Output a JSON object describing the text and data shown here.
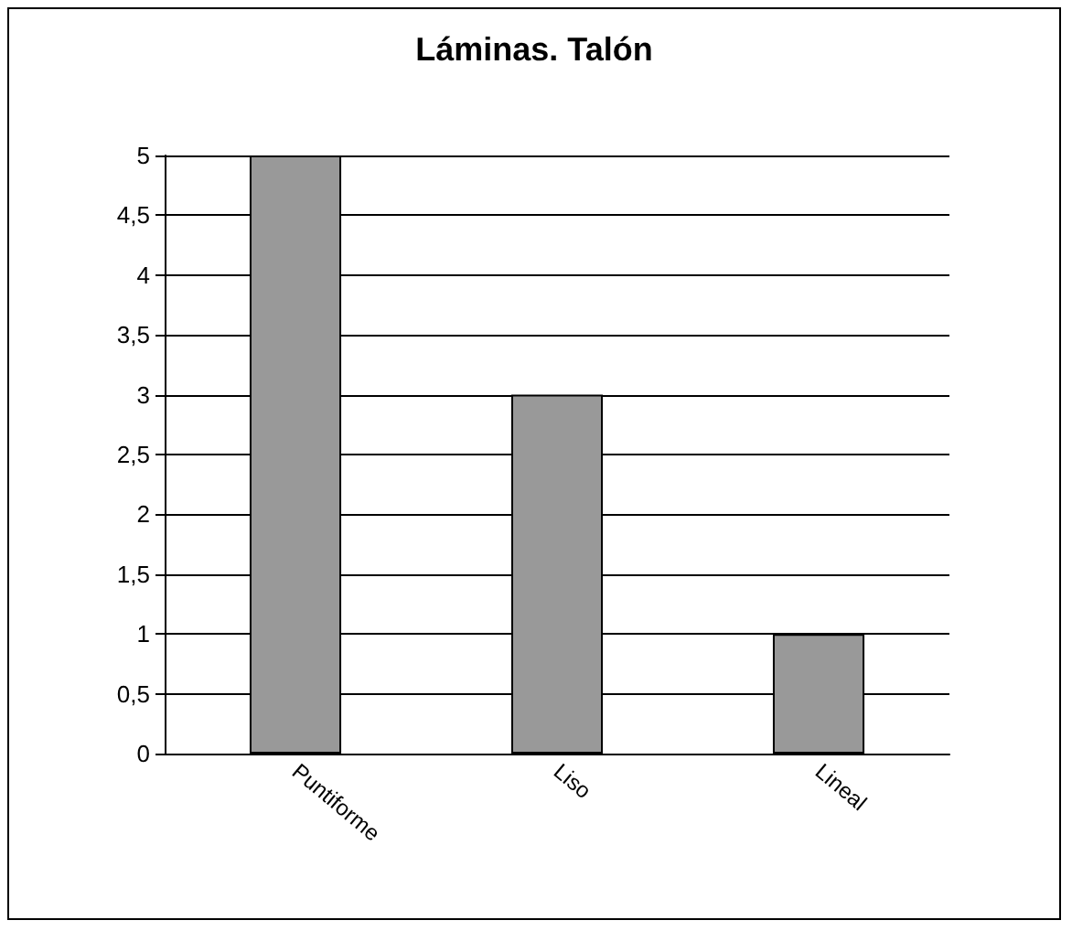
{
  "chart_data": {
    "type": "bar",
    "title": "Láminas. Talón",
    "categories": [
      "Puntiforme",
      "Liso",
      "Lineal"
    ],
    "values": [
      5,
      3,
      1
    ],
    "color": "#999999",
    "ylim": [
      0,
      5
    ],
    "yticks": [
      0,
      {
        "value": 0.5,
        "label": "0,5"
      },
      1,
      {
        "value": 1.5,
        "label": "1,5"
      },
      2,
      {
        "value": 2.5,
        "label": "2,5"
      },
      3,
      {
        "value": 3.5,
        "label": "3,5"
      },
      4,
      {
        "value": 4.5,
        "label": "4,5"
      },
      5
    ],
    "grid": "y"
  }
}
